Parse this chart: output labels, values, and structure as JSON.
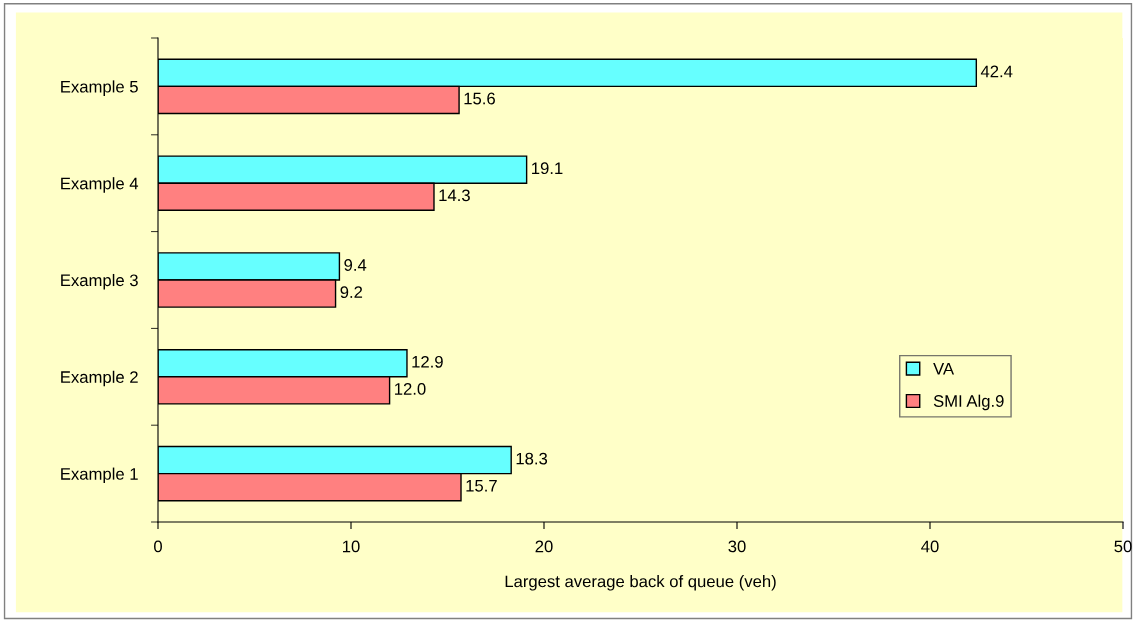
{
  "chart_data": {
    "type": "bar",
    "orientation": "horizontal",
    "xlabel": "Largest average back of queue (veh)",
    "categories": [
      "Example 5",
      "Example 4",
      "Example 3",
      "Example 2",
      "Example 1"
    ],
    "series": [
      {
        "name": "VA",
        "color": "#66ffff",
        "values": [
          42.4,
          19.1,
          9.4,
          12.9,
          18.3
        ],
        "value_labels": [
          "42.4",
          "19.1",
          "9.4",
          "12.9",
          "18.3"
        ]
      },
      {
        "name": "SMI Alg.9",
        "color": "#ff8080",
        "values": [
          15.6,
          14.3,
          9.2,
          12.0,
          15.7
        ],
        "value_labels": [
          "15.6",
          "14.3",
          "9.2",
          "12.0",
          "15.7"
        ]
      }
    ],
    "xlim": [
      0,
      50
    ],
    "xticks": [
      0,
      10,
      20,
      30,
      40,
      50
    ],
    "grid": false,
    "legend": "bottom right"
  }
}
